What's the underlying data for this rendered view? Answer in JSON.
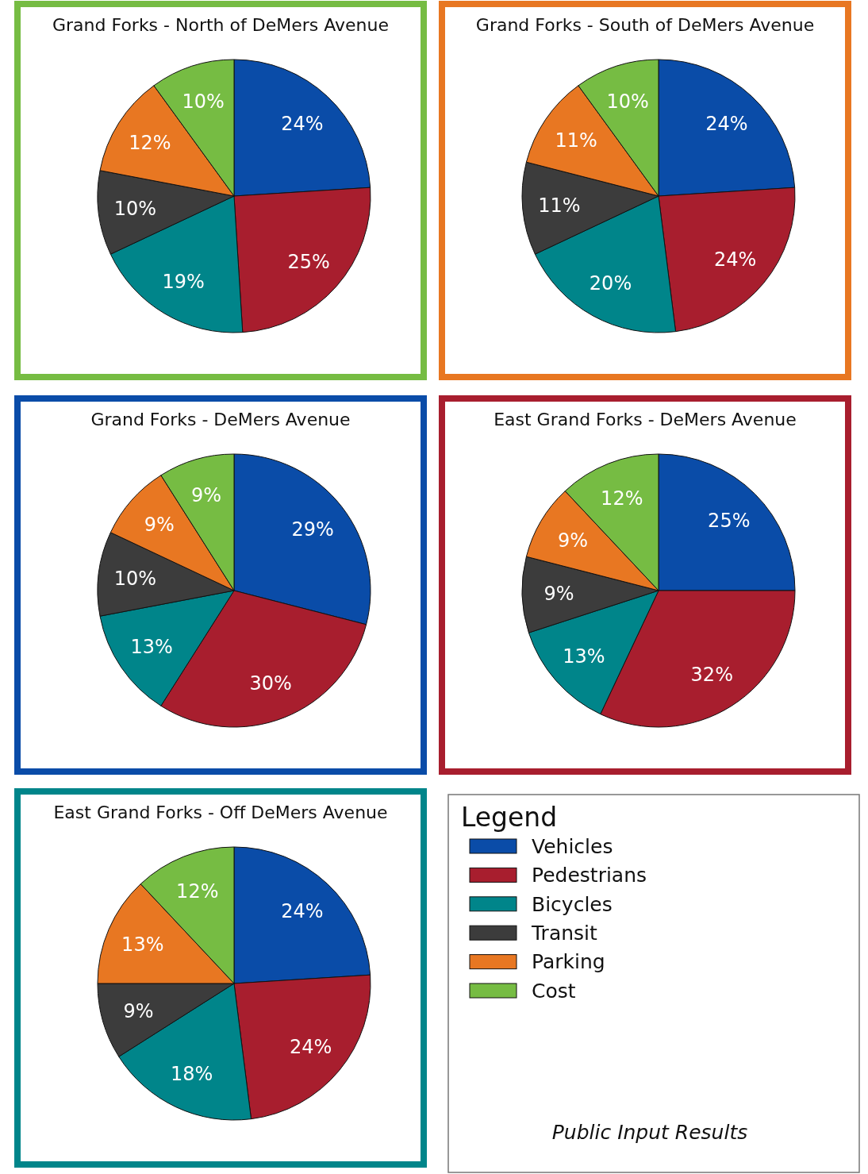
{
  "chart_data": [
    {
      "type": "pie",
      "title": "Grand Forks - North of DeMers Avenue",
      "categories": [
        null,
        null,
        null,
        null,
        null,
        null
      ],
      "values": [
        24,
        25,
        19,
        10,
        12,
        10
      ],
      "value_labels": [
        "24%",
        "25%",
        "19%",
        "10%",
        "12%",
        "10%"
      ],
      "colors": [
        "#0a4ca8",
        "#a81e2e",
        "#00858a",
        "#3c3c3c",
        "#e87722",
        "#76bc43"
      ],
      "legend": false
    },
    {
      "type": "pie",
      "title": "Grand Forks - South of DeMers Avenue",
      "categories": [
        null,
        null,
        null,
        null,
        null,
        null
      ],
      "values": [
        24,
        24,
        20,
        11,
        11,
        10
      ],
      "value_labels": [
        "24%",
        "24%",
        "20%",
        "11%",
        "11%",
        "10%"
      ],
      "colors": [
        "#0a4ca8",
        "#a81e2e",
        "#00858a",
        "#3c3c3c",
        "#e87722",
        "#76bc43"
      ],
      "legend": false
    },
    {
      "type": "pie",
      "title": "Grand Forks - DeMers Avenue",
      "categories": [
        null,
        null,
        null,
        null,
        null,
        null
      ],
      "values": [
        29,
        30,
        13,
        10,
        9,
        9
      ],
      "value_labels": [
        "29%",
        "30%",
        "13%",
        "10%",
        "9%",
        "9%"
      ],
      "colors": [
        "#0a4ca8",
        "#a81e2e",
        "#00858a",
        "#3c3c3c",
        "#e87722",
        "#76bc43"
      ],
      "legend": false
    },
    {
      "type": "pie",
      "title": "East Grand Forks - DeMers Avenue",
      "categories": [
        null,
        null,
        null,
        null,
        null,
        null
      ],
      "values": [
        25,
        32,
        13,
        9,
        9,
        12
      ],
      "value_labels": [
        "25%",
        "32%",
        "13%",
        "9%",
        "9%",
        "12%"
      ],
      "colors": [
        "#0a4ca8",
        "#a81e2e",
        "#00858a",
        "#3c3c3c",
        "#e87722",
        "#76bc43"
      ],
      "legend": false
    },
    {
      "type": "pie",
      "title": "East Grand Forks - Off DeMers Avenue",
      "categories": [
        "Vehicles",
        "Pedestrians",
        "Bicycles",
        "Transit",
        "Parking",
        "Cost"
      ],
      "values": [
        24,
        24,
        18,
        9,
        13,
        12
      ],
      "value_labels": [
        "24%",
        "24%",
        "18%",
        "9%",
        "13%",
        "12%"
      ],
      "colors": [
        "#0a4ca8",
        "#a81e2e",
        "#00858a",
        "#3c3c3c",
        "#e87722",
        "#76bc43"
      ],
      "legend": "right",
      "legend_title": "Legend",
      "annotations": [
        "Public Input Results"
      ]
    }
  ]
}
